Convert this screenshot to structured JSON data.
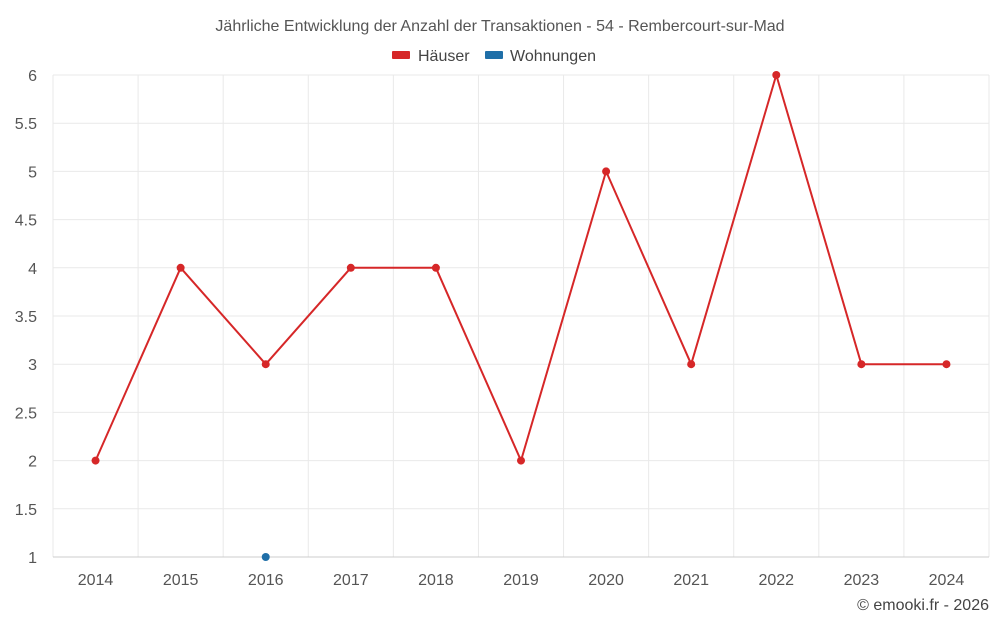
{
  "chart_data": {
    "type": "line",
    "title": "Jährliche Entwicklung der Anzahl der Transaktionen - 54 - Rembercourt-sur-Mad",
    "categories": [
      "2014",
      "2015",
      "2016",
      "2017",
      "2018",
      "2019",
      "2020",
      "2021",
      "2022",
      "2023",
      "2024"
    ],
    "yticks": [
      "1",
      "1.5",
      "2",
      "2.5",
      "3",
      "3.5",
      "4",
      "4.5",
      "5",
      "5.5",
      "6"
    ],
    "ylim": [
      1,
      6
    ],
    "grid": true,
    "legend_position": "top-center",
    "series": [
      {
        "name": "Häuser",
        "color": "#d62728",
        "values": [
          2,
          4,
          3,
          4,
          4,
          2,
          5,
          3,
          6,
          3,
          3
        ]
      },
      {
        "name": "Wohnungen",
        "color": "#1f6fa8",
        "values": [
          null,
          null,
          1,
          null,
          null,
          null,
          null,
          null,
          null,
          null,
          null
        ]
      }
    ]
  },
  "credit": "© emooki.fr - 2026"
}
